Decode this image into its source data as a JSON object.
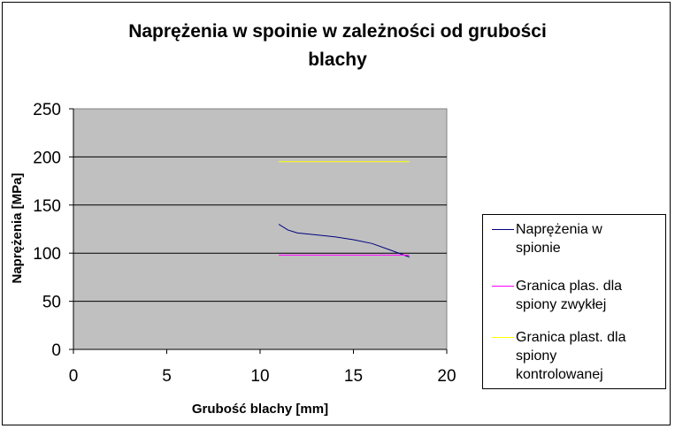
{
  "chart_data": {
    "type": "line",
    "title": "Naprężenia w spoinie w zależności od grubości blachy",
    "title_lines": [
      "Naprężenia w spoinie w zależności od grubości",
      "blachy"
    ],
    "xlabel": "Grubość blachy [mm]",
    "ylabel": "Naprężenia [MPa]",
    "xlim": [
      0,
      20
    ],
    "ylim": [
      0,
      250
    ],
    "xticks": [
      "0",
      "5",
      "10",
      "15",
      "20"
    ],
    "yticks": [
      "0",
      "50",
      "100",
      "150",
      "200",
      "250"
    ],
    "grid": "horizontal",
    "plot_background": "#c0c0c0",
    "legend_position": "right",
    "series": [
      {
        "name": "Naprężenia w spionie",
        "name_lines": [
          "Naprężenia w",
          "spionie"
        ],
        "color": "#000080",
        "x": [
          11,
          11.5,
          12,
          13,
          14,
          15,
          16,
          17,
          18
        ],
        "y": [
          130,
          124,
          121,
          119,
          117,
          114,
          110,
          103,
          96
        ]
      },
      {
        "name": "Granica plas. dla spiony zwykłej",
        "name_lines": [
          "Granica plas. dla",
          "spiony zwykłej"
        ],
        "color": "#ff00ff",
        "x": [
          11,
          18
        ],
        "y": [
          98,
          98
        ]
      },
      {
        "name": "Granica plast. dla spiony kontrolowanej",
        "name_lines": [
          "Granica plast. dla",
          "spiony",
          "kontrolowanej"
        ],
        "color": "#ffff00",
        "x": [
          11,
          18
        ],
        "y": [
          195,
          195
        ]
      }
    ]
  }
}
